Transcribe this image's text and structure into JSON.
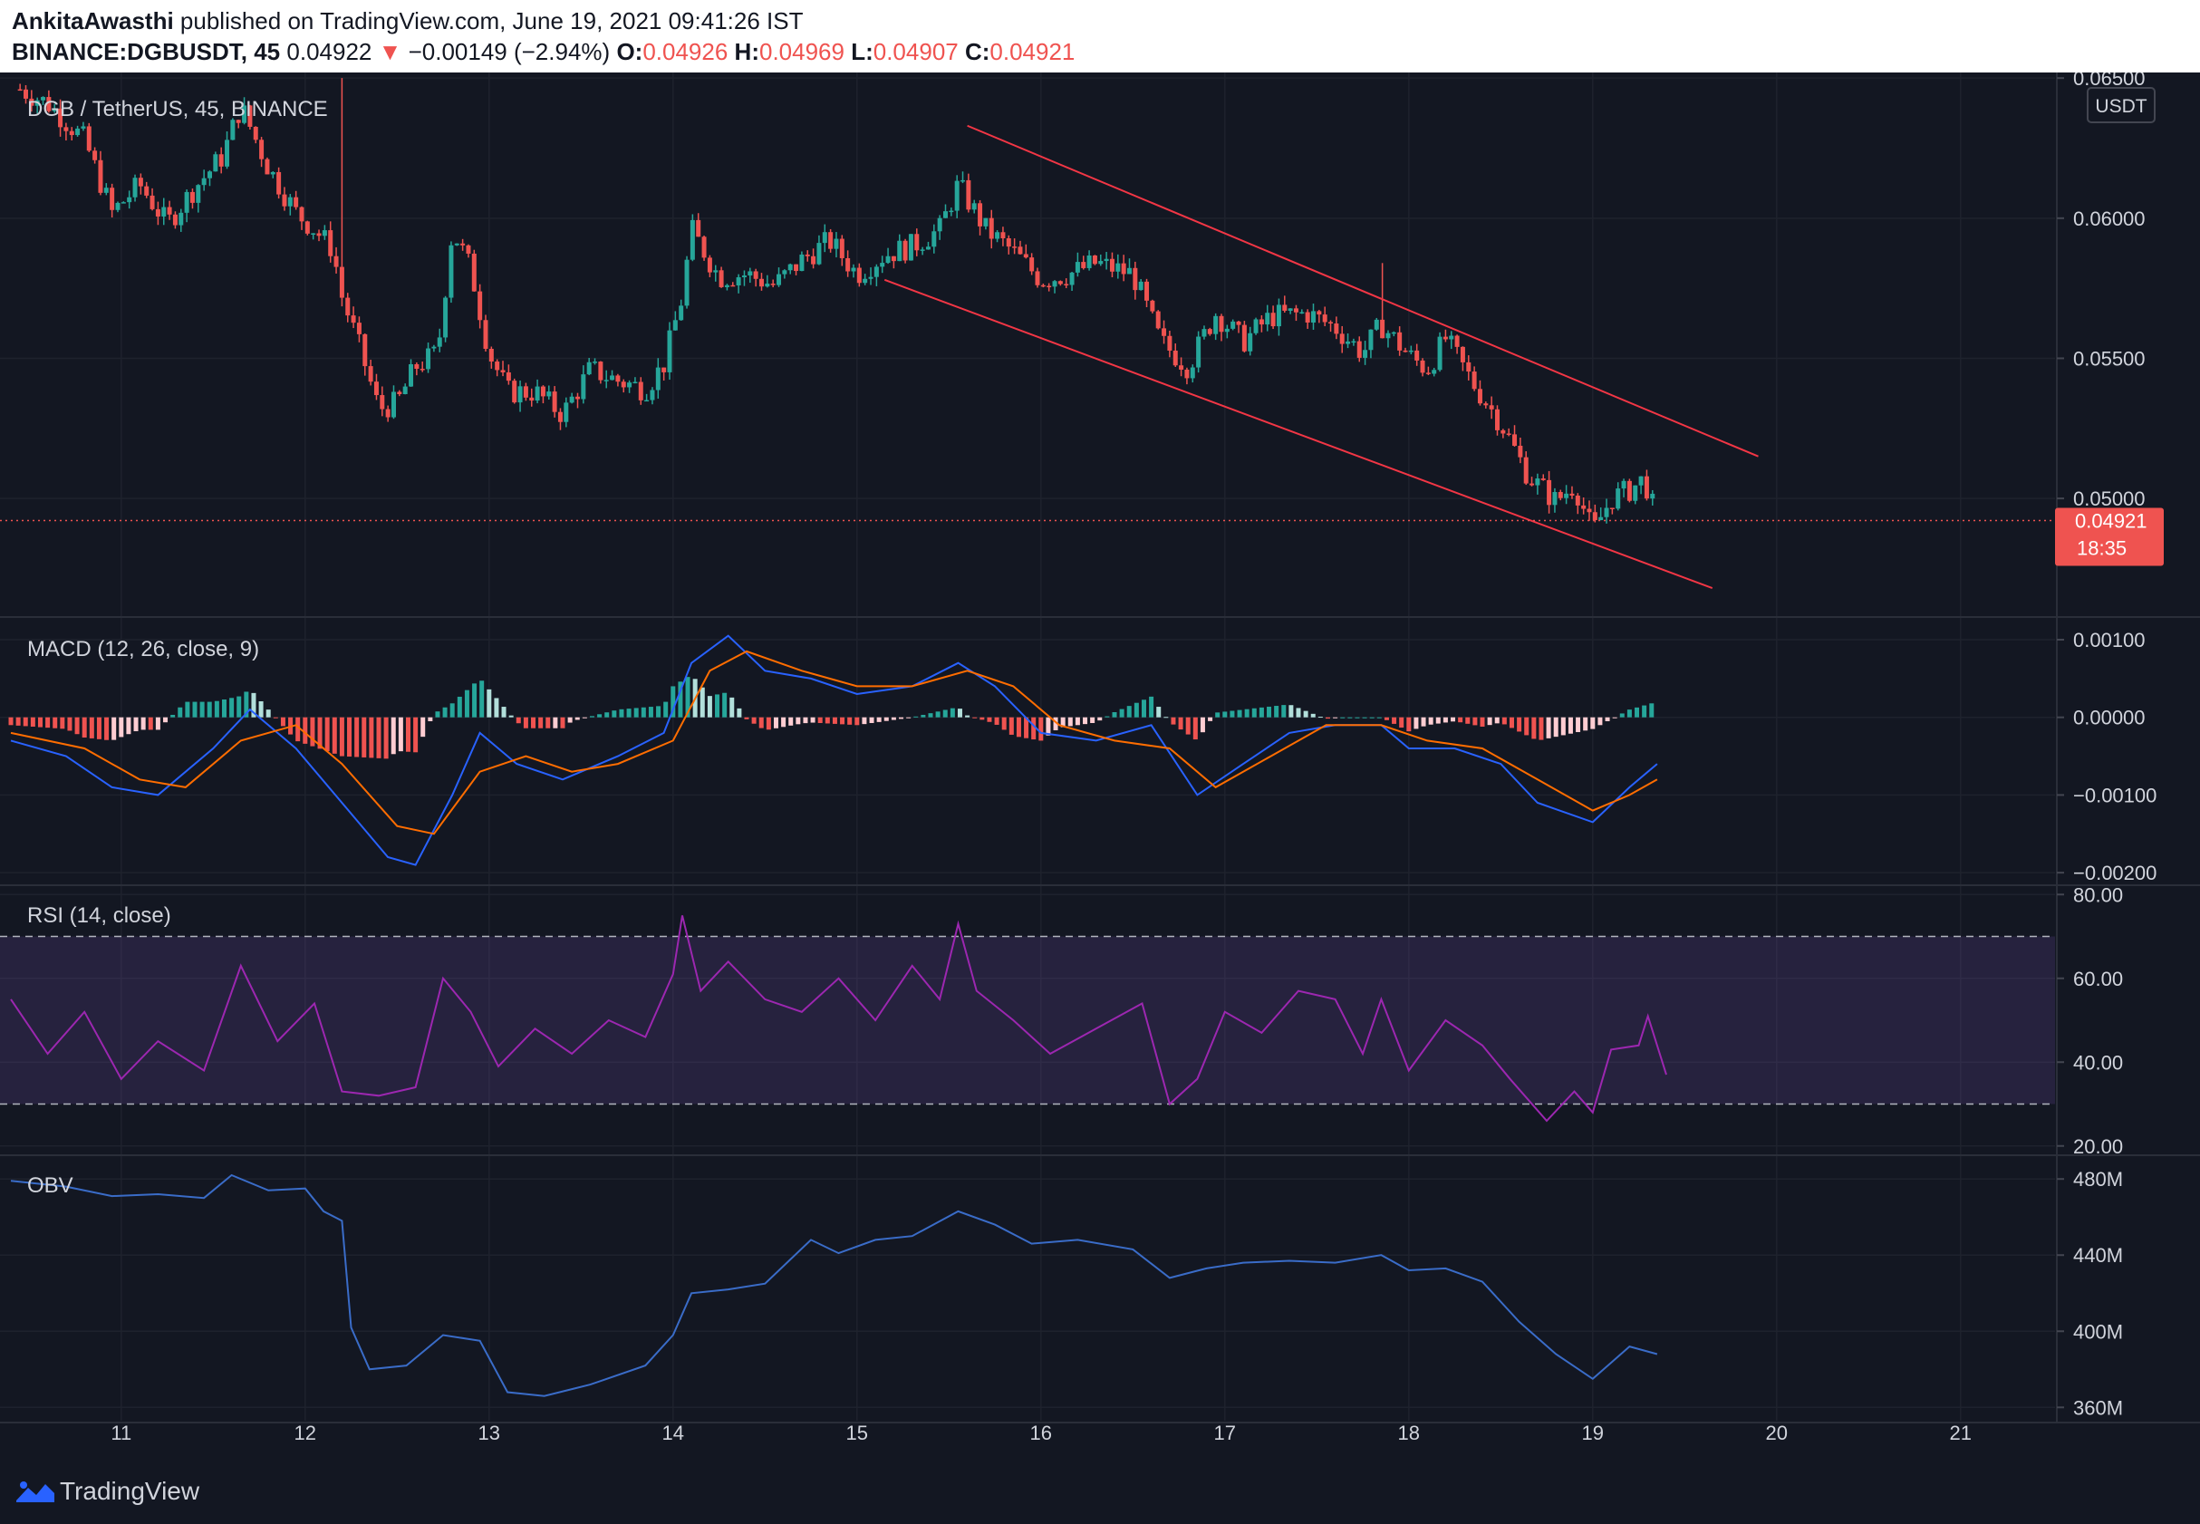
{
  "header": {
    "author": "AnkitaAwasthi",
    "published": " published on TradingView.com, June 19, 2021 09:41:26 IST",
    "symbol": "BINANCE:DGBUSDT, 45",
    "last": "0.04922",
    "change_arrow": "▼",
    "change": "−0.00149 (−2.94%)",
    "o_label": "O:",
    "o_value": "0.04926",
    "h_label": "H:",
    "h_value": "0.04969",
    "l_label": "L:",
    "l_value": "0.04907",
    "c_label": "C:",
    "c_value": "0.04921"
  },
  "main": {
    "legend": "DGB / TetherUS, 45, BINANCE",
    "currency_button": "USDT",
    "price_ticks": [
      "0.06500",
      "0.06000",
      "0.05500",
      "0.05000"
    ],
    "last_price_label": "0.04921",
    "countdown": "18:35"
  },
  "macd": {
    "legend": "MACD (12, 26, close, 9)",
    "ticks": [
      "0.00100",
      "0.00000",
      "−0.00100",
      "−0.00200"
    ]
  },
  "rsi": {
    "legend": "RSI (14, close)",
    "ticks": [
      "80.00",
      "60.00",
      "40.00",
      "20.00"
    ]
  },
  "obv": {
    "legend": "OBV",
    "ticks": [
      "480M",
      "440M",
      "400M",
      "360M"
    ]
  },
  "time_axis": [
    "11",
    "12",
    "13",
    "14",
    "15",
    "16",
    "17",
    "18",
    "19",
    "20",
    "21"
  ],
  "footer": {
    "brand": "TradingView",
    "logo_icon": "tradingview-logo-icon"
  },
  "colors": {
    "up": "#26a69a",
    "down": "#ef5350",
    "macd": "#2962ff",
    "signal": "#ff6d00",
    "rsi": "#9c27b0",
    "obv": "#3a6cc8",
    "channel": "#f23645",
    "background": "#131722"
  },
  "chart_data": [
    {
      "type": "candlestick",
      "title": "DGB / TetherUS, 45, BINANCE",
      "x_range_days": [
        10.4,
        21.5
      ],
      "ylim": [
        0.0458,
        0.0652
      ],
      "last_close": 0.04921,
      "close_path": [
        {
          "day": 10.45,
          "close": 0.0646
        },
        {
          "day": 10.6,
          "close": 0.0641
        },
        {
          "day": 10.8,
          "close": 0.0628
        },
        {
          "day": 10.95,
          "close": 0.0602
        },
        {
          "day": 11.1,
          "close": 0.0612
        },
        {
          "day": 11.25,
          "close": 0.0598
        },
        {
          "day": 11.4,
          "close": 0.0611
        },
        {
          "day": 11.55,
          "close": 0.0622
        },
        {
          "day": 11.65,
          "close": 0.064
        },
        {
          "day": 11.8,
          "close": 0.0618
        },
        {
          "day": 11.95,
          "close": 0.0602
        },
        {
          "day": 12.05,
          "close": 0.0596
        },
        {
          "day": 12.15,
          "close": 0.0589
        },
        {
          "day": 12.2,
          "close": 0.0572
        },
        {
          "day": 12.3,
          "close": 0.0553
        },
        {
          "day": 12.4,
          "close": 0.0532
        },
        {
          "day": 12.5,
          "close": 0.0534
        },
        {
          "day": 12.6,
          "close": 0.0547
        },
        {
          "day": 12.72,
          "close": 0.0552
        },
        {
          "day": 12.8,
          "close": 0.0596
        },
        {
          "day": 12.9,
          "close": 0.0582
        },
        {
          "day": 13.0,
          "close": 0.0552
        },
        {
          "day": 13.1,
          "close": 0.0538
        },
        {
          "day": 13.25,
          "close": 0.0538
        },
        {
          "day": 13.4,
          "close": 0.053
        },
        {
          "day": 13.55,
          "close": 0.0546
        },
        {
          "day": 13.7,
          "close": 0.0542
        },
        {
          "day": 13.85,
          "close": 0.0539
        },
        {
          "day": 13.95,
          "close": 0.0548
        },
        {
          "day": 14.05,
          "close": 0.0572
        },
        {
          "day": 14.1,
          "close": 0.0596
        },
        {
          "day": 14.25,
          "close": 0.0579
        },
        {
          "day": 14.4,
          "close": 0.058
        },
        {
          "day": 14.55,
          "close": 0.0576
        },
        {
          "day": 14.7,
          "close": 0.0585
        },
        {
          "day": 14.85,
          "close": 0.0592
        },
        {
          "day": 15.0,
          "close": 0.058
        },
        {
          "day": 15.15,
          "close": 0.0587
        },
        {
          "day": 15.3,
          "close": 0.059
        },
        {
          "day": 15.45,
          "close": 0.0596
        },
        {
          "day": 15.55,
          "close": 0.0612
        },
        {
          "day": 15.7,
          "close": 0.0596
        },
        {
          "day": 15.85,
          "close": 0.0588
        },
        {
          "day": 16.0,
          "close": 0.0578
        },
        {
          "day": 16.15,
          "close": 0.058
        },
        {
          "day": 16.3,
          "close": 0.0584
        },
        {
          "day": 16.5,
          "close": 0.058
        },
        {
          "day": 16.65,
          "close": 0.0556
        },
        {
          "day": 16.8,
          "close": 0.0547
        },
        {
          "day": 16.95,
          "close": 0.0566
        },
        {
          "day": 17.1,
          "close": 0.0556
        },
        {
          "day": 17.25,
          "close": 0.0565
        },
        {
          "day": 17.45,
          "close": 0.0566
        },
        {
          "day": 17.6,
          "close": 0.0561
        },
        {
          "day": 17.75,
          "close": 0.0552
        },
        {
          "day": 17.85,
          "close": 0.0562
        },
        {
          "day": 18.0,
          "close": 0.0551
        },
        {
          "day": 18.1,
          "close": 0.0546
        },
        {
          "day": 18.2,
          "close": 0.0557
        },
        {
          "day": 18.35,
          "close": 0.0541
        },
        {
          "day": 18.5,
          "close": 0.0527
        },
        {
          "day": 18.65,
          "close": 0.0508
        },
        {
          "day": 18.8,
          "close": 0.0499
        },
        {
          "day": 18.9,
          "close": 0.0505
        },
        {
          "day": 19.0,
          "close": 0.0488
        },
        {
          "day": 19.1,
          "close": 0.05
        },
        {
          "day": 19.2,
          "close": 0.0503
        },
        {
          "day": 19.28,
          "close": 0.0507
        },
        {
          "day": 19.35,
          "close": 0.0492
        }
      ],
      "spikes": [
        {
          "day": 12.2,
          "high": 0.065
        },
        {
          "day": 17.85,
          "high": 0.0584
        }
      ],
      "channel": {
        "upper": [
          {
            "day": 15.6,
            "price": 0.0633
          },
          {
            "day": 19.9,
            "price": 0.0515
          }
        ],
        "lower": [
          {
            "day": 15.15,
            "price": 0.0578
          },
          {
            "day": 19.65,
            "price": 0.0468
          }
        ]
      }
    },
    {
      "type": "bar+line",
      "title": "MACD (12, 26, close, 9)",
      "ylim": [
        -0.00215,
        0.00128
      ],
      "macd": [
        {
          "day": 10.4,
          "value": -0.0003
        },
        {
          "day": 10.7,
          "value": -0.0005
        },
        {
          "day": 10.95,
          "value": -0.0009
        },
        {
          "day": 11.2,
          "value": -0.001
        },
        {
          "day": 11.5,
          "value": -0.0004
        },
        {
          "day": 11.7,
          "value": 0.0001
        },
        {
          "day": 11.95,
          "value": -0.0004
        },
        {
          "day": 12.2,
          "value": -0.0011
        },
        {
          "day": 12.45,
          "value": -0.0018
        },
        {
          "day": 12.6,
          "value": -0.0019
        },
        {
          "day": 12.8,
          "value": -0.001
        },
        {
          "day": 12.95,
          "value": -0.0002
        },
        {
          "day": 13.15,
          "value": -0.0006
        },
        {
          "day": 13.4,
          "value": -0.0008
        },
        {
          "day": 13.7,
          "value": -0.0005
        },
        {
          "day": 13.95,
          "value": -0.0002
        },
        {
          "day": 14.1,
          "value": 0.0007
        },
        {
          "day": 14.3,
          "value": 0.00105
        },
        {
          "day": 14.5,
          "value": 0.0006
        },
        {
          "day": 14.75,
          "value": 0.0005
        },
        {
          "day": 15.0,
          "value": 0.0003
        },
        {
          "day": 15.3,
          "value": 0.0004
        },
        {
          "day": 15.55,
          "value": 0.0007
        },
        {
          "day": 15.75,
          "value": 0.0004
        },
        {
          "day": 16.0,
          "value": -0.0002
        },
        {
          "day": 16.3,
          "value": -0.0003
        },
        {
          "day": 16.6,
          "value": -0.0001
        },
        {
          "day": 16.85,
          "value": -0.001
        },
        {
          "day": 17.1,
          "value": -0.0006
        },
        {
          "day": 17.35,
          "value": -0.0002
        },
        {
          "day": 17.6,
          "value": -0.0001
        },
        {
          "day": 17.85,
          "value": -0.0001
        },
        {
          "day": 18.0,
          "value": -0.0004
        },
        {
          "day": 18.25,
          "value": -0.0004
        },
        {
          "day": 18.5,
          "value": -0.0006
        },
        {
          "day": 18.7,
          "value": -0.0011
        },
        {
          "day": 19.0,
          "value": -0.00135
        },
        {
          "day": 19.2,
          "value": -0.0009
        },
        {
          "day": 19.35,
          "value": -0.0006
        }
      ],
      "signal": [
        {
          "day": 10.4,
          "value": -0.0002
        },
        {
          "day": 10.8,
          "value": -0.0004
        },
        {
          "day": 11.1,
          "value": -0.0008
        },
        {
          "day": 11.35,
          "value": -0.0009
        },
        {
          "day": 11.65,
          "value": -0.0003
        },
        {
          "day": 11.95,
          "value": -0.0001
        },
        {
          "day": 12.2,
          "value": -0.0006
        },
        {
          "day": 12.5,
          "value": -0.0014
        },
        {
          "day": 12.7,
          "value": -0.0015
        },
        {
          "day": 12.95,
          "value": -0.0007
        },
        {
          "day": 13.2,
          "value": -0.0005
        },
        {
          "day": 13.45,
          "value": -0.0007
        },
        {
          "day": 13.7,
          "value": -0.0006
        },
        {
          "day": 14.0,
          "value": -0.0003
        },
        {
          "day": 14.2,
          "value": 0.0006
        },
        {
          "day": 14.4,
          "value": 0.00085
        },
        {
          "day": 14.7,
          "value": 0.0006
        },
        {
          "day": 15.0,
          "value": 0.0004
        },
        {
          "day": 15.3,
          "value": 0.0004
        },
        {
          "day": 15.6,
          "value": 0.0006
        },
        {
          "day": 15.85,
          "value": 0.0004
        },
        {
          "day": 16.1,
          "value": -0.0001
        },
        {
          "day": 16.4,
          "value": -0.0003
        },
        {
          "day": 16.7,
          "value": -0.0004
        },
        {
          "day": 16.95,
          "value": -0.0009
        },
        {
          "day": 17.25,
          "value": -0.0005
        },
        {
          "day": 17.55,
          "value": -0.0001
        },
        {
          "day": 17.85,
          "value": -0.0001
        },
        {
          "day": 18.1,
          "value": -0.0003
        },
        {
          "day": 18.4,
          "value": -0.0004
        },
        {
          "day": 18.7,
          "value": -0.0008
        },
        {
          "day": 19.0,
          "value": -0.0012
        },
        {
          "day": 19.2,
          "value": -0.001
        },
        {
          "day": 19.35,
          "value": -0.0008
        }
      ]
    },
    {
      "type": "line",
      "title": "RSI (14, close)",
      "ylim": [
        18,
        82
      ],
      "bands": [
        30,
        70
      ],
      "values": [
        {
          "day": 10.4,
          "value": 55
        },
        {
          "day": 10.6,
          "value": 42
        },
        {
          "day": 10.8,
          "value": 52
        },
        {
          "day": 11.0,
          "value": 36
        },
        {
          "day": 11.2,
          "value": 45
        },
        {
          "day": 11.45,
          "value": 38
        },
        {
          "day": 11.65,
          "value": 63
        },
        {
          "day": 11.85,
          "value": 45
        },
        {
          "day": 12.05,
          "value": 54
        },
        {
          "day": 12.2,
          "value": 33
        },
        {
          "day": 12.4,
          "value": 32
        },
        {
          "day": 12.6,
          "value": 34
        },
        {
          "day": 12.75,
          "value": 60
        },
        {
          "day": 12.9,
          "value": 52
        },
        {
          "day": 13.05,
          "value": 39
        },
        {
          "day": 13.25,
          "value": 48
        },
        {
          "day": 13.45,
          "value": 42
        },
        {
          "day": 13.65,
          "value": 50
        },
        {
          "day": 13.85,
          "value": 46
        },
        {
          "day": 14.0,
          "value": 61
        },
        {
          "day": 14.05,
          "value": 75
        },
        {
          "day": 14.15,
          "value": 57
        },
        {
          "day": 14.3,
          "value": 64
        },
        {
          "day": 14.5,
          "value": 55
        },
        {
          "day": 14.7,
          "value": 52
        },
        {
          "day": 14.9,
          "value": 60
        },
        {
          "day": 15.1,
          "value": 50
        },
        {
          "day": 15.3,
          "value": 63
        },
        {
          "day": 15.45,
          "value": 55
        },
        {
          "day": 15.55,
          "value": 73
        },
        {
          "day": 15.65,
          "value": 57
        },
        {
          "day": 15.85,
          "value": 50
        },
        {
          "day": 16.05,
          "value": 42
        },
        {
          "day": 16.3,
          "value": 48
        },
        {
          "day": 16.55,
          "value": 54
        },
        {
          "day": 16.7,
          "value": 30
        },
        {
          "day": 16.85,
          "value": 36
        },
        {
          "day": 17.0,
          "value": 52
        },
        {
          "day": 17.2,
          "value": 47
        },
        {
          "day": 17.4,
          "value": 57
        },
        {
          "day": 17.6,
          "value": 55
        },
        {
          "day": 17.75,
          "value": 42
        },
        {
          "day": 17.85,
          "value": 55
        },
        {
          "day": 18.0,
          "value": 38
        },
        {
          "day": 18.2,
          "value": 50
        },
        {
          "day": 18.4,
          "value": 44
        },
        {
          "day": 18.55,
          "value": 36
        },
        {
          "day": 18.75,
          "value": 26
        },
        {
          "day": 18.9,
          "value": 33
        },
        {
          "day": 19.0,
          "value": 28
        },
        {
          "day": 19.1,
          "value": 43
        },
        {
          "day": 19.25,
          "value": 44
        },
        {
          "day": 19.3,
          "value": 51
        },
        {
          "day": 19.4,
          "value": 37
        }
      ]
    },
    {
      "type": "line",
      "title": "OBV",
      "ylim": [
        353,
        492
      ],
      "unit": "M",
      "values": [
        {
          "day": 10.4,
          "value": 479
        },
        {
          "day": 10.7,
          "value": 476
        },
        {
          "day": 10.95,
          "value": 471
        },
        {
          "day": 11.2,
          "value": 472
        },
        {
          "day": 11.45,
          "value": 470
        },
        {
          "day": 11.6,
          "value": 482
        },
        {
          "day": 11.8,
          "value": 474
        },
        {
          "day": 12.0,
          "value": 475
        },
        {
          "day": 12.1,
          "value": 463
        },
        {
          "day": 12.2,
          "value": 458
        },
        {
          "day": 12.25,
          "value": 402
        },
        {
          "day": 12.35,
          "value": 380
        },
        {
          "day": 12.55,
          "value": 382
        },
        {
          "day": 12.75,
          "value": 398
        },
        {
          "day": 12.95,
          "value": 395
        },
        {
          "day": 13.1,
          "value": 368
        },
        {
          "day": 13.3,
          "value": 366
        },
        {
          "day": 13.55,
          "value": 372
        },
        {
          "day": 13.85,
          "value": 382
        },
        {
          "day": 14.0,
          "value": 398
        },
        {
          "day": 14.1,
          "value": 420
        },
        {
          "day": 14.3,
          "value": 422
        },
        {
          "day": 14.5,
          "value": 425
        },
        {
          "day": 14.75,
          "value": 448
        },
        {
          "day": 14.9,
          "value": 441
        },
        {
          "day": 15.1,
          "value": 448
        },
        {
          "day": 15.3,
          "value": 450
        },
        {
          "day": 15.55,
          "value": 463
        },
        {
          "day": 15.75,
          "value": 456
        },
        {
          "day": 15.95,
          "value": 446
        },
        {
          "day": 16.2,
          "value": 448
        },
        {
          "day": 16.5,
          "value": 443
        },
        {
          "day": 16.7,
          "value": 428
        },
        {
          "day": 16.9,
          "value": 433
        },
        {
          "day": 17.1,
          "value": 436
        },
        {
          "day": 17.35,
          "value": 437
        },
        {
          "day": 17.6,
          "value": 436
        },
        {
          "day": 17.85,
          "value": 440
        },
        {
          "day": 18.0,
          "value": 432
        },
        {
          "day": 18.2,
          "value": 433
        },
        {
          "day": 18.4,
          "value": 426
        },
        {
          "day": 18.6,
          "value": 405
        },
        {
          "day": 18.8,
          "value": 388
        },
        {
          "day": 19.0,
          "value": 375
        },
        {
          "day": 19.2,
          "value": 392
        },
        {
          "day": 19.35,
          "value": 388
        }
      ]
    }
  ]
}
